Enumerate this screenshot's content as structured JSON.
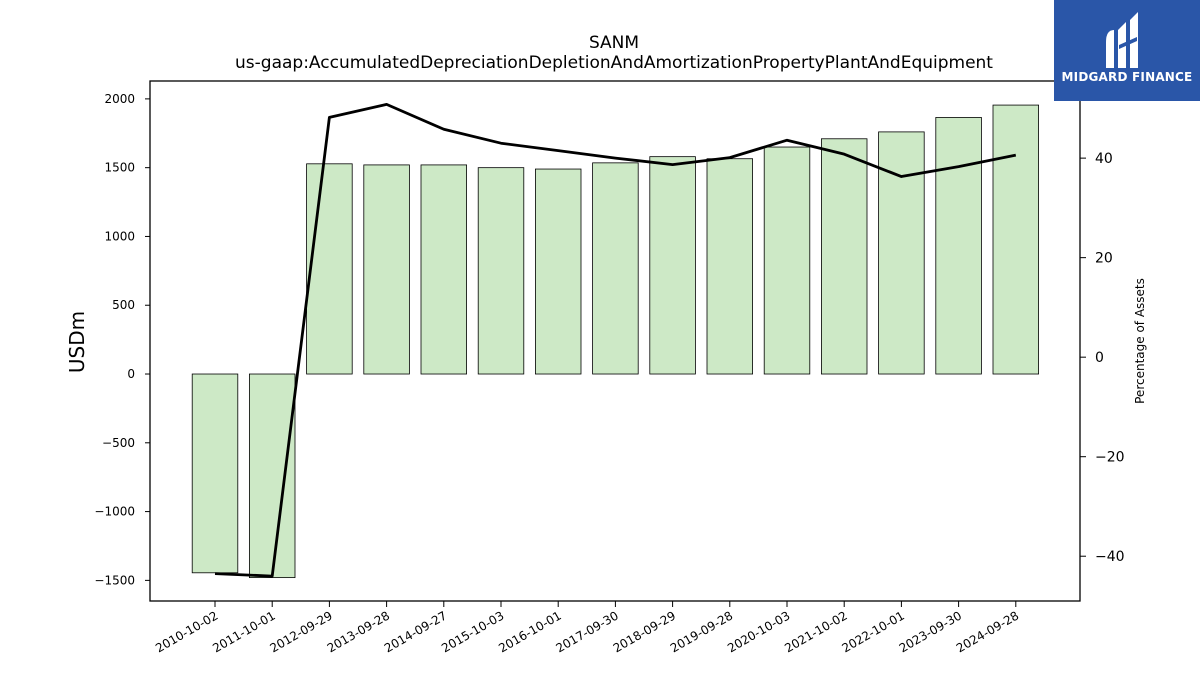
{
  "brand": {
    "name": "MIDGARD FINANCE",
    "color": "#2a56a8"
  },
  "chart_data": {
    "type": "bar",
    "title": "SANM",
    "subtitle": "us-gaap:AccumulatedDepreciationDepletionAndAmortizationPropertyPlantAndEquipment",
    "ylabel": "USDm",
    "y2label": "Percentage of Assets",
    "categories": [
      "2010-10-02",
      "2011-10-01",
      "2012-09-29",
      "2013-09-28",
      "2014-09-27",
      "2015-10-03",
      "2016-10-01",
      "2017-09-30",
      "2018-09-29",
      "2019-09-28",
      "2020-10-03",
      "2021-10-02",
      "2022-10-01",
      "2023-09-30",
      "2024-09-28"
    ],
    "series": [
      {
        "type": "bar",
        "axis": "left",
        "color": "#cde9c6",
        "values": [
          -1445,
          -1480,
          1528,
          1520,
          1520,
          1500,
          1490,
          1535,
          1580,
          1565,
          1650,
          1710,
          1760,
          1865,
          1955
        ]
      },
      {
        "type": "line",
        "axis": "right",
        "color": "#000000",
        "values": [
          -43.5,
          -44.0,
          48.2,
          50.8,
          45.8,
          43.0,
          41.5,
          40.0,
          38.7,
          40.1,
          43.6,
          40.8,
          36.3,
          38.3,
          40.6
        ]
      }
    ],
    "ylim": [
      -1650,
      2130
    ],
    "y2lim": [
      -49.0,
      55.5
    ],
    "yticks": [
      -1500,
      -1000,
      -500,
      0,
      500,
      1000,
      1500,
      2000
    ],
    "yticklabels": [
      "−1500",
      "−1000",
      "−500",
      "0",
      "500",
      "1000",
      "1500",
      "2000"
    ],
    "y2ticks": [
      -40,
      -20,
      0,
      20,
      40
    ],
    "y2ticklabels": [
      "−40",
      "−20",
      "0",
      "20",
      "40"
    ],
    "grid": false,
    "legend": "none"
  }
}
